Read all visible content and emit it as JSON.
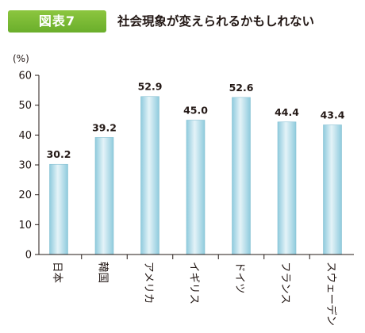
{
  "figure": {
    "badge": "図表7",
    "title": "社会現象が変えられるかもしれない"
  },
  "colors": {
    "badge": "#7aba34",
    "bar_light": "#e4f3f8",
    "bar_dark": "#8fcbdd"
  },
  "chart_data": {
    "type": "bar",
    "title": "社会現象が変えられるかもしれない",
    "ylabel": "(%)",
    "xlabel": "",
    "ylim": [
      0,
      60
    ],
    "yticks": [
      0,
      10,
      20,
      30,
      40,
      50,
      60
    ],
    "categories": [
      "日本",
      "韓国",
      "アメリカ",
      "イギリス",
      "ドイツ",
      "フランス",
      "スウェーデン"
    ],
    "values": [
      30.2,
      39.2,
      52.9,
      45.0,
      52.6,
      44.4,
      43.4
    ],
    "value_labels": [
      "30.2",
      "39.2",
      "52.9",
      "45.0",
      "52.6",
      "44.4",
      "43.4"
    ],
    "grid": false,
    "legend": "none"
  }
}
